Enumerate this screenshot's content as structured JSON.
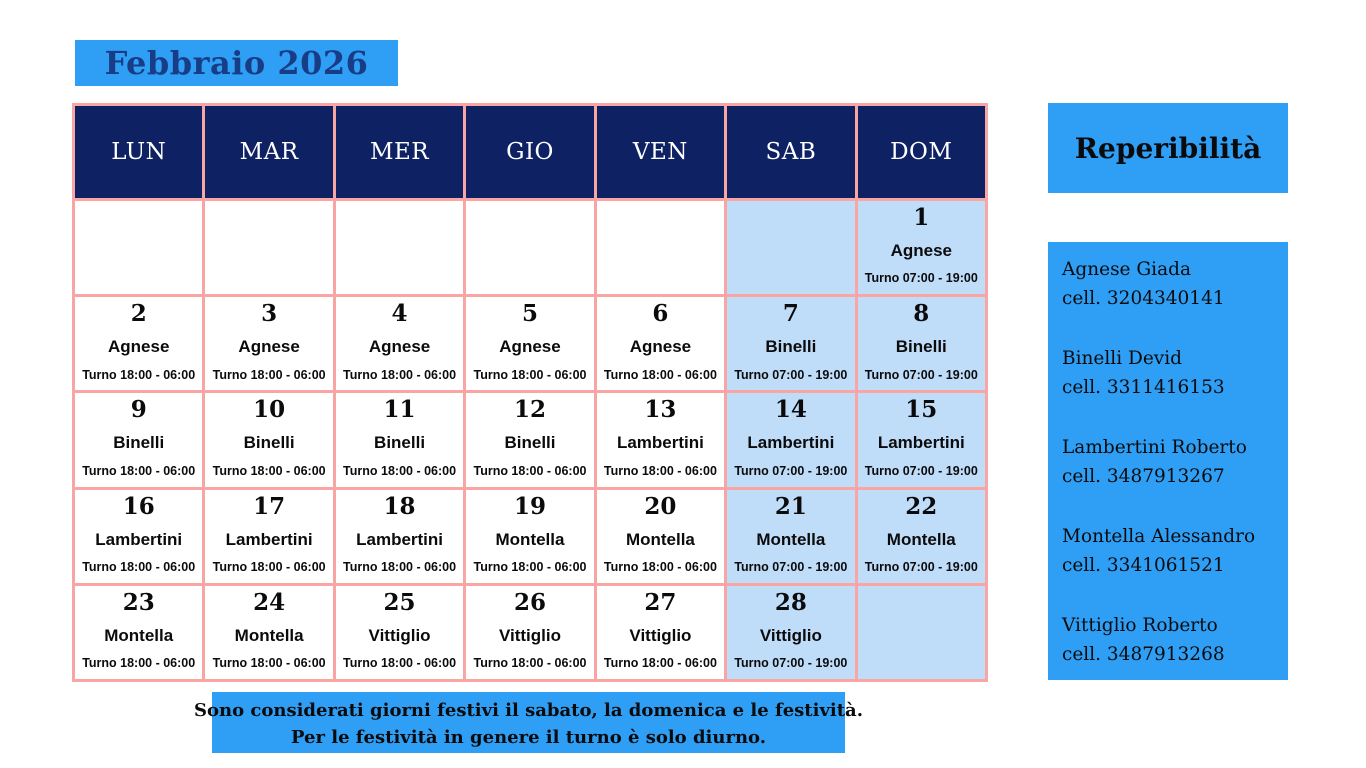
{
  "colors": {
    "accent_blue": "#2E9FF5",
    "navy": "#0E2163",
    "pink_border": "#F8A5A3",
    "weekend_blue": "#BFDDF8",
    "title_text": "#183C85",
    "text_black": "#0B0B0D"
  },
  "title": "Febbraio 2026",
  "calendar": {
    "day_headers": [
      "LUN",
      "MAR",
      "MER",
      "GIO",
      "VEN",
      "SAB",
      "DOM"
    ],
    "night_shift_label": "Turno 18:00 - 06:00",
    "day_shift_label": "Turno 07:00 - 19:00",
    "weeks": [
      [
        {
          "day": "",
          "name": "",
          "shift": ""
        },
        {
          "day": "",
          "name": "",
          "shift": ""
        },
        {
          "day": "",
          "name": "",
          "shift": ""
        },
        {
          "day": "",
          "name": "",
          "shift": ""
        },
        {
          "day": "",
          "name": "",
          "shift": ""
        },
        {
          "day": "",
          "name": "",
          "shift": ""
        },
        {
          "day": "1",
          "name": "Agnese",
          "shift": "Turno 07:00 - 19:00"
        }
      ],
      [
        {
          "day": "2",
          "name": "Agnese",
          "shift": "Turno 18:00 - 06:00"
        },
        {
          "day": "3",
          "name": "Agnese",
          "shift": "Turno 18:00 - 06:00"
        },
        {
          "day": "4",
          "name": "Agnese",
          "shift": "Turno 18:00 - 06:00"
        },
        {
          "day": "5",
          "name": "Agnese",
          "shift": "Turno 18:00 - 06:00"
        },
        {
          "day": "6",
          "name": "Agnese",
          "shift": "Turno 18:00 - 06:00"
        },
        {
          "day": "7",
          "name": "Binelli",
          "shift": "Turno 07:00 - 19:00"
        },
        {
          "day": "8",
          "name": "Binelli",
          "shift": "Turno 07:00 - 19:00"
        }
      ],
      [
        {
          "day": "9",
          "name": "Binelli",
          "shift": "Turno 18:00 - 06:00"
        },
        {
          "day": "10",
          "name": "Binelli",
          "shift": "Turno 18:00 - 06:00"
        },
        {
          "day": "11",
          "name": "Binelli",
          "shift": "Turno 18:00 - 06:00"
        },
        {
          "day": "12",
          "name": "Binelli",
          "shift": "Turno 18:00 - 06:00"
        },
        {
          "day": "13",
          "name": "Lambertini",
          "shift": "Turno 18:00 - 06:00"
        },
        {
          "day": "14",
          "name": "Lambertini",
          "shift": "Turno 07:00 - 19:00"
        },
        {
          "day": "15",
          "name": "Lambertini",
          "shift": "Turno 07:00 - 19:00"
        }
      ],
      [
        {
          "day": "16",
          "name": "Lambertini",
          "shift": "Turno 18:00 - 06:00"
        },
        {
          "day": "17",
          "name": "Lambertini",
          "shift": "Turno 18:00 - 06:00"
        },
        {
          "day": "18",
          "name": "Lambertini",
          "shift": "Turno 18:00 - 06:00"
        },
        {
          "day": "19",
          "name": "Montella",
          "shift": "Turno 18:00 - 06:00"
        },
        {
          "day": "20",
          "name": "Montella",
          "shift": "Turno 18:00 - 06:00"
        },
        {
          "day": "21",
          "name": "Montella",
          "shift": "Turno 07:00 - 19:00"
        },
        {
          "day": "22",
          "name": "Montella",
          "shift": "Turno 07:00 - 19:00"
        }
      ],
      [
        {
          "day": "23",
          "name": "Montella",
          "shift": "Turno 18:00 - 06:00"
        },
        {
          "day": "24",
          "name": "Montella",
          "shift": "Turno 18:00 - 06:00"
        },
        {
          "day": "25",
          "name": "Vittiglio",
          "shift": "Turno 18:00 - 06:00"
        },
        {
          "day": "26",
          "name": "Vittiglio",
          "shift": "Turno 18:00 - 06:00"
        },
        {
          "day": "27",
          "name": "Vittiglio",
          "shift": "Turno 18:00 - 06:00"
        },
        {
          "day": "28",
          "name": "Vittiglio",
          "shift": "Turno 07:00 - 19:00"
        },
        {
          "day": "",
          "name": "",
          "shift": ""
        }
      ]
    ]
  },
  "sidebar": {
    "title": "Reperibilità",
    "contacts": [
      {
        "name": "Agnese Giada",
        "phone": "cell. 3204340141"
      },
      {
        "name": "Binelli Devid",
        "phone": "cell. 3311416153"
      },
      {
        "name": "Lambertini Roberto",
        "phone": "cell. 3487913267"
      },
      {
        "name": "Montella Alessandro",
        "phone": "cell. 3341061521"
      },
      {
        "name": "Vittiglio Roberto",
        "phone": "cell. 3487913268"
      }
    ]
  },
  "note": {
    "line1": "Sono considerati giorni festivi il sabato, la domenica e le festività.",
    "line2": "Per le festività in genere il turno è solo diurno."
  }
}
